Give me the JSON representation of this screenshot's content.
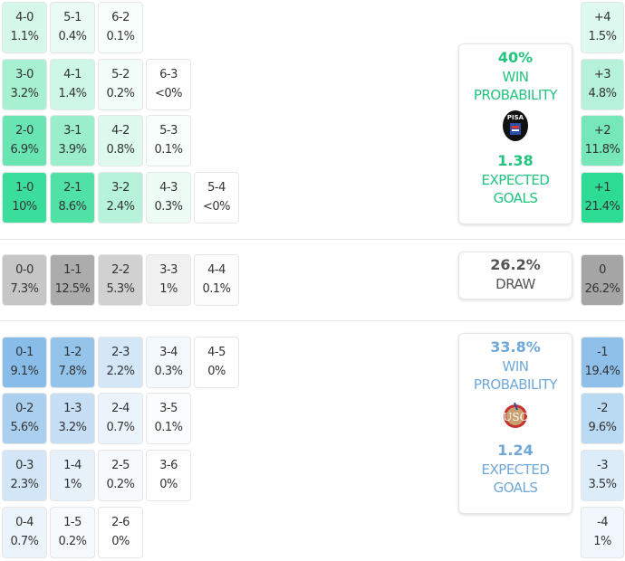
{
  "colors": {
    "home": "#22c47e",
    "away": "#6fa8d8",
    "draw": "#555555"
  },
  "home_scores": [
    [
      {
        "s": "4-0",
        "p": "1.1%"
      },
      {
        "s": "5-1",
        "p": "0.4%"
      },
      {
        "s": "6-2",
        "p": "0.1%"
      }
    ],
    [
      {
        "s": "3-0",
        "p": "3.2%"
      },
      {
        "s": "4-1",
        "p": "1.4%"
      },
      {
        "s": "5-2",
        "p": "0.2%"
      },
      {
        "s": "6-3",
        "p": "<0%"
      }
    ],
    [
      {
        "s": "2-0",
        "p": "6.9%"
      },
      {
        "s": "3-1",
        "p": "3.9%"
      },
      {
        "s": "4-2",
        "p": "0.8%"
      },
      {
        "s": "5-3",
        "p": "0.1%"
      }
    ],
    [
      {
        "s": "1-0",
        "p": "10%"
      },
      {
        "s": "2-1",
        "p": "8.6%"
      },
      {
        "s": "3-2",
        "p": "2.4%"
      },
      {
        "s": "4-3",
        "p": "0.3%"
      },
      {
        "s": "5-4",
        "p": "<0%"
      }
    ]
  ],
  "draw_scores": [
    [
      {
        "s": "0-0",
        "p": "7.3%"
      },
      {
        "s": "1-1",
        "p": "12.5%"
      },
      {
        "s": "2-2",
        "p": "5.3%"
      },
      {
        "s": "3-3",
        "p": "1%"
      },
      {
        "s": "4-4",
        "p": "0.1%"
      }
    ]
  ],
  "away_scores": [
    [
      {
        "s": "0-1",
        "p": "9.1%"
      },
      {
        "s": "1-2",
        "p": "7.8%"
      },
      {
        "s": "2-3",
        "p": "2.2%"
      },
      {
        "s": "3-4",
        "p": "0.3%"
      },
      {
        "s": "4-5",
        "p": "0%"
      }
    ],
    [
      {
        "s": "0-2",
        "p": "5.6%"
      },
      {
        "s": "1-3",
        "p": "3.2%"
      },
      {
        "s": "2-4",
        "p": "0.7%"
      },
      {
        "s": "3-5",
        "p": "0.1%"
      }
    ],
    [
      {
        "s": "0-3",
        "p": "2.3%"
      },
      {
        "s": "1-4",
        "p": "1%"
      },
      {
        "s": "2-5",
        "p": "0.2%"
      },
      {
        "s": "3-6",
        "p": "0%"
      }
    ],
    [
      {
        "s": "0-4",
        "p": "0.7%"
      },
      {
        "s": "1-5",
        "p": "0.2%"
      },
      {
        "s": "2-6",
        "p": "0%"
      }
    ]
  ],
  "margins_home": [
    {
      "s": "+4",
      "p": "1.5%"
    },
    {
      "s": "+3",
      "p": "4.8%"
    },
    {
      "s": "+2",
      "p": "11.8%"
    },
    {
      "s": "+1",
      "p": "21.4%"
    }
  ],
  "margin_draw": [
    {
      "s": "0",
      "p": "26.2%"
    }
  ],
  "margins_away": [
    {
      "s": "-1",
      "p": "19.4%"
    },
    {
      "s": "-2",
      "p": "9.6%"
    },
    {
      "s": "-3",
      "p": "3.5%"
    },
    {
      "s": "-4",
      "p": "1%"
    }
  ],
  "home_card": {
    "win_pct": "40%",
    "win_label": "WIN PROBABILITY",
    "logo_text": "PISA",
    "xg": "1.38",
    "xg_label": "EXPECTED GOALS"
  },
  "draw_card": {
    "pct": "26.2%",
    "label": "DRAW"
  },
  "away_card": {
    "win_pct": "33.8%",
    "win_label": "WIN PROBABILITY",
    "xg": "1.24",
    "xg_label": "EXPECTED GOALS"
  }
}
